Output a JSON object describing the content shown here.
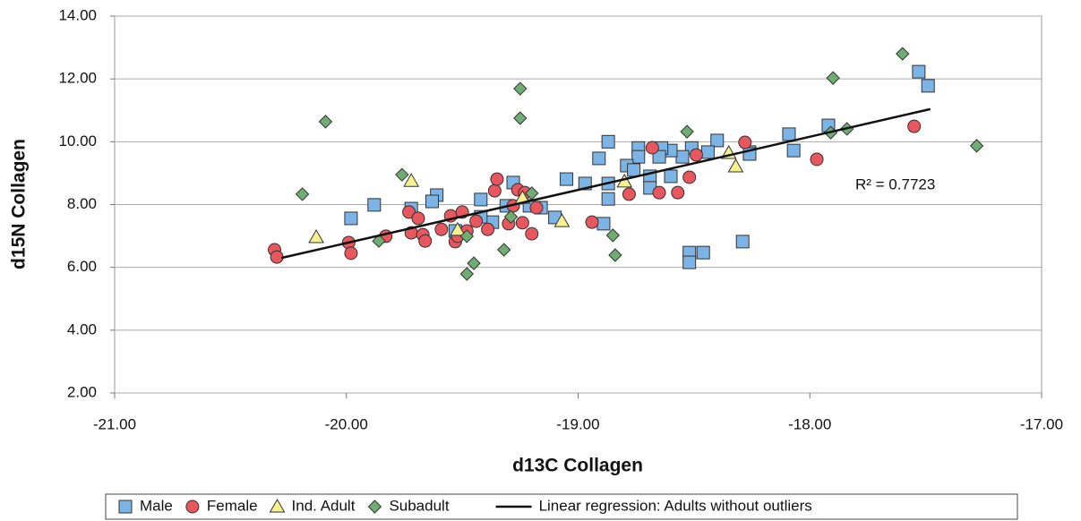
{
  "chart_data": {
    "type": "scatter",
    "x_label": "d13C Collagen",
    "y_label": "d15N Collagen",
    "xlim": [
      -21,
      -17
    ],
    "ylim": [
      2,
      14
    ],
    "xticks": [
      {
        "value": -21,
        "label": "-21.00"
      },
      {
        "value": -20,
        "label": "-20.00"
      },
      {
        "value": -19,
        "label": "-19.00"
      },
      {
        "value": -18,
        "label": "-18.00"
      },
      {
        "value": -17,
        "label": "-17.00"
      }
    ],
    "yticks": [
      {
        "value": 2,
        "label": "2.00"
      },
      {
        "value": 4,
        "label": "4.00"
      },
      {
        "value": 6,
        "label": "6.00"
      },
      {
        "value": 8,
        "label": "8.00"
      },
      {
        "value": 10,
        "label": "10.00"
      },
      {
        "value": 12,
        "label": "12.00"
      },
      {
        "value": 14,
        "label": "14.00"
      }
    ],
    "grid": true,
    "annotation": "R² = 0.7723",
    "series": [
      {
        "name": "Male",
        "color": "#7cb4e6",
        "marker": "square",
        "x": [
          -17.53,
          -17.49,
          -17.92,
          -18.09,
          -18.07,
          -18.26,
          -18.4,
          -18.44,
          -18.51,
          -18.55,
          -18.6,
          -18.64,
          -18.65,
          -18.74,
          -18.74,
          -18.79,
          -18.76,
          -18.69,
          -18.69,
          -18.6,
          -18.87,
          -18.91,
          -18.87,
          -18.87,
          -18.97,
          -19.05,
          -18.89,
          -19.1,
          -19.16,
          -19.21,
          -19.28,
          -19.31,
          -19.37,
          -19.42,
          -19.42,
          -19.61,
          -19.63,
          -19.72,
          -19.88,
          -19.98,
          -18.52,
          -18.52,
          -18.46,
          -18.29,
          -19.53,
          -18.26
        ],
        "y": [
          12.23,
          11.78,
          10.52,
          10.24,
          9.72,
          9.67,
          10.04,
          9.67,
          9.8,
          9.52,
          9.72,
          9.8,
          9.52,
          9.8,
          9.52,
          9.24,
          9.1,
          8.9,
          8.53,
          8.9,
          10.0,
          9.47,
          8.67,
          8.18,
          8.67,
          8.81,
          7.39,
          7.59,
          7.9,
          7.96,
          8.7,
          7.96,
          7.44,
          7.61,
          8.16,
          8.3,
          8.1,
          7.87,
          7.99,
          7.56,
          6.47,
          6.16,
          6.47,
          6.82,
          7.16,
          9.61
        ]
      },
      {
        "name": "Female",
        "color": "#e8565e",
        "marker": "circle",
        "x": [
          -20.31,
          -20.3,
          -19.99,
          -19.98,
          -19.83,
          -19.73,
          -19.72,
          -19.69,
          -19.67,
          -19.66,
          -19.59,
          -19.55,
          -19.53,
          -19.52,
          -19.5,
          -19.48,
          -19.44,
          -19.39,
          -19.36,
          -19.35,
          -19.3,
          -19.28,
          -19.26,
          -19.24,
          -19.23,
          -19.2,
          -19.18,
          -18.94,
          -18.78,
          -18.68,
          -18.65,
          -18.57,
          -18.52,
          -18.49,
          -18.28,
          -17.97,
          -17.55
        ],
        "y": [
          6.56,
          6.33,
          6.79,
          6.45,
          6.99,
          7.76,
          7.1,
          7.56,
          7.04,
          6.84,
          7.21,
          7.64,
          6.82,
          6.99,
          7.76,
          7.16,
          7.47,
          7.21,
          8.44,
          8.81,
          7.39,
          7.96,
          8.47,
          7.42,
          8.38,
          7.07,
          7.9,
          7.44,
          8.33,
          9.81,
          8.38,
          8.38,
          8.87,
          9.58,
          9.98,
          9.44,
          10.49
        ]
      },
      {
        "name": "Ind. Adult",
        "color": "#f6f28e",
        "marker": "triangle",
        "x": [
          -20.13,
          -19.72,
          -19.52,
          -19.24,
          -19.07,
          -18.8,
          -18.35,
          -18.32
        ],
        "y": [
          6.96,
          8.75,
          7.19,
          8.21,
          7.47,
          8.73,
          9.64,
          9.21
        ]
      },
      {
        "name": "Subadult",
        "color": "#6fae72",
        "marker": "diamond",
        "x": [
          -20.19,
          -20.09,
          -19.86,
          -19.76,
          -19.48,
          -19.48,
          -19.45,
          -19.32,
          -19.29,
          -19.25,
          -19.25,
          -19.2,
          -18.85,
          -18.84,
          -18.53,
          -17.9,
          -17.91,
          -17.84,
          -17.6,
          -17.28
        ],
        "y": [
          8.33,
          10.64,
          6.84,
          8.95,
          6.99,
          5.79,
          6.13,
          6.56,
          7.61,
          11.69,
          10.75,
          8.36,
          7.02,
          6.39,
          10.32,
          12.03,
          10.29,
          10.41,
          12.8,
          9.87
        ]
      },
      {
        "name": "Linear regression: Adults without outliers",
        "color": "#111111",
        "marker": "line",
        "x": [
          -20.28,
          -17.48
        ],
        "y": [
          6.3,
          11.04
        ]
      }
    ]
  }
}
